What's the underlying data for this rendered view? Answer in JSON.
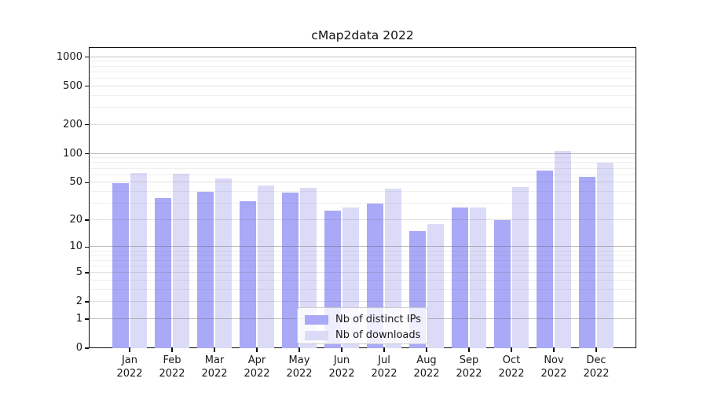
{
  "title": "cMap2data 2022",
  "chart_data": {
    "type": "bar",
    "title": "cMap2data 2022",
    "categories": [
      "Jan",
      "Feb",
      "Mar",
      "Apr",
      "May",
      "Jun",
      "Jul",
      "Aug",
      "Sep",
      "Oct",
      "Nov",
      "Dec"
    ],
    "year_label": "2022",
    "series": [
      {
        "name": "Nb of distinct IPs",
        "color": "#a9a9f8",
        "values": [
          49,
          34,
          40,
          32,
          39,
          25,
          30,
          15,
          27,
          20,
          67,
          57
        ]
      },
      {
        "name": "Nb of downloads",
        "color": "#dbdbf8",
        "values": [
          63,
          62,
          55,
          47,
          44,
          27,
          43,
          18,
          27,
          45,
          108,
          81
        ]
      }
    ],
    "xlabel": "",
    "ylabel": "",
    "yscale": "symlog (log1p)",
    "ylim": [
      0,
      1267
    ],
    "yticks": [
      1000,
      500,
      200,
      100,
      50,
      20,
      10,
      5,
      2,
      1,
      0
    ],
    "grid": "horizontal, drawn above bars",
    "legend_position": "lower center",
    "background_color": "#ffffff",
    "spine_color": "#0c0c0c"
  }
}
